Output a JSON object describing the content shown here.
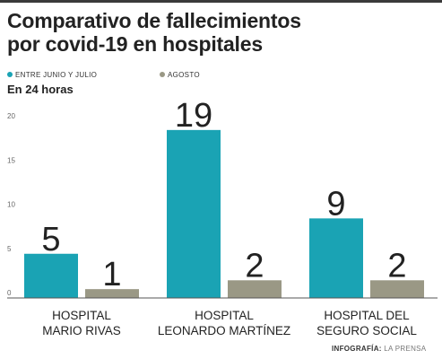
{
  "title_line1": "Comparativo de fallecimientos",
  "title_line2": "por covid-19 en hospitales",
  "unit_label": "En 24 horas",
  "credit": {
    "label": "INFOGRAFÍA:",
    "source": "LA PRENSA"
  },
  "colors": {
    "series1": "#1aa3b4",
    "series2": "#9a9885",
    "text": "#222222",
    "axis": "#666666"
  },
  "chart_data": {
    "type": "bar",
    "title": "Comparativo de fallecimientos por covid-19 en hospitales",
    "subtitle": "En 24 horas",
    "categories": [
      [
        "HOSPITAL",
        "MARIO RIVAS"
      ],
      [
        "HOSPITAL",
        "LEONARDO MARTÍNEZ"
      ],
      [
        "HOSPITAL DEL",
        "SEGURO SOCIAL"
      ]
    ],
    "series": [
      {
        "name": "ENTRE JUNIO Y JULIO",
        "values": [
          5,
          19,
          9
        ]
      },
      {
        "name": "AGOSTO",
        "values": [
          1,
          2,
          2
        ]
      }
    ],
    "yticks": [
      0,
      5,
      10,
      15,
      20
    ],
    "ylim": [
      0,
      20
    ],
    "legend_position": "top-left",
    "grid": false
  }
}
